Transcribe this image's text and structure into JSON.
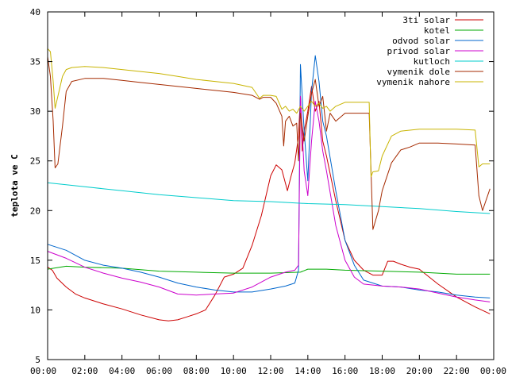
{
  "chart_data": {
    "type": "line",
    "title": "",
    "xlabel": "",
    "ylabel": "teplota ve C",
    "x_unit": "hours",
    "xlim": [
      0,
      24
    ],
    "ylim": [
      5,
      40
    ],
    "x_tick_labels": [
      "00:00",
      "02:00",
      "04:00",
      "06:00",
      "08:00",
      "10:00",
      "12:00",
      "14:00",
      "16:00",
      "18:00",
      "20:00",
      "22:00",
      "00:00"
    ],
    "x_tick_values": [
      0,
      2,
      4,
      6,
      8,
      10,
      12,
      14,
      16,
      18,
      20,
      22,
      24
    ],
    "y_ticks": [
      5,
      10,
      15,
      20,
      25,
      30,
      35,
      40
    ],
    "grid": false,
    "legend_position": "top-right",
    "series": [
      {
        "name": "3ti solar",
        "color": "#cc0000",
        "x": [
          0,
          0.25,
          0.5,
          1,
          1.5,
          2,
          3,
          4,
          5,
          6,
          6.5,
          7,
          7.5,
          8,
          8.5,
          9,
          9.5,
          10,
          10.5,
          11,
          11.5,
          12,
          12.3,
          12.6,
          12.9,
          13.1,
          13.3,
          13.5,
          13.6,
          13.7,
          13.8,
          14.0,
          14.2,
          14.4,
          14.6,
          14.8,
          15.0,
          15.5,
          16,
          16.5,
          17,
          17.5,
          18,
          18.3,
          18.6,
          19,
          19.5,
          20,
          21,
          22,
          23,
          23.8
        ],
        "values": [
          14.3,
          14.0,
          13.2,
          12.3,
          11.6,
          11.2,
          10.6,
          10.1,
          9.5,
          9.0,
          8.9,
          9.0,
          9.3,
          9.6,
          10.0,
          11.5,
          13.3,
          13.6,
          14.2,
          16.5,
          19.5,
          23.5,
          24.6,
          24.1,
          22.0,
          23.5,
          24.8,
          27.5,
          31.5,
          26.0,
          28.0,
          30.0,
          32.5,
          30.0,
          31.0,
          27.0,
          25.5,
          21.0,
          17.0,
          15.0,
          14.0,
          13.5,
          13.5,
          14.9,
          14.9,
          14.6,
          14.3,
          14.1,
          12.6,
          11.3,
          10.3,
          9.6
        ]
      },
      {
        "name": "kotel",
        "color": "#00aa00",
        "x": [
          0,
          1,
          2,
          4,
          6,
          8,
          10,
          12,
          13.6,
          14,
          15,
          16,
          18,
          20,
          22,
          23.8
        ],
        "values": [
          14.1,
          14.4,
          14.3,
          14.2,
          13.9,
          13.8,
          13.7,
          13.7,
          13.8,
          14.1,
          14.1,
          14.0,
          13.9,
          13.8,
          13.6,
          13.6
        ]
      },
      {
        "name": "odvod solar",
        "color": "#0066cc",
        "x": [
          0,
          1,
          2,
          3,
          4,
          5,
          6,
          7,
          8,
          9,
          10,
          11,
          12,
          12.8,
          13.3,
          13.5,
          13.6,
          13.8,
          14.0,
          14.2,
          14.4,
          14.6,
          14.8,
          15,
          15.5,
          16,
          16.5,
          17,
          18,
          19,
          20,
          21,
          22,
          23,
          23.8
        ],
        "values": [
          16.6,
          16.0,
          15.0,
          14.5,
          14.2,
          13.8,
          13.3,
          12.7,
          12.3,
          12.0,
          11.8,
          11.8,
          12.1,
          12.4,
          12.7,
          14.0,
          34.7,
          28.0,
          23.0,
          32.0,
          35.6,
          33.0,
          29.0,
          27.5,
          22.0,
          17.0,
          14.5,
          13.0,
          12.4,
          12.3,
          12.0,
          11.8,
          11.5,
          11.3,
          11.2
        ]
      },
      {
        "name": "privod solar",
        "color": "#cc00cc",
        "x": [
          0,
          1,
          2,
          3,
          4,
          5,
          6,
          7,
          8,
          9,
          10,
          11,
          12,
          12.8,
          13.3,
          13.5,
          13.6,
          13.8,
          14.0,
          14.2,
          14.4,
          14.6,
          14.8,
          15,
          15.5,
          16,
          16.5,
          17,
          18,
          19,
          20,
          21,
          22,
          23,
          23.8
        ],
        "values": [
          15.9,
          15.2,
          14.3,
          13.7,
          13.2,
          12.8,
          12.3,
          11.6,
          11.5,
          11.6,
          11.7,
          12.3,
          13.3,
          13.8,
          14.0,
          14.5,
          31.5,
          24.0,
          21.5,
          27.0,
          31.0,
          29.0,
          26.0,
          24.0,
          18.5,
          15.0,
          13.3,
          12.6,
          12.4,
          12.3,
          12.1,
          11.7,
          11.3,
          11.0,
          10.8
        ]
      },
      {
        "name": "kutloch",
        "color": "#00cccc",
        "x": [
          0,
          1,
          2,
          4,
          6,
          8,
          10,
          12,
          14,
          16,
          18,
          20,
          22,
          23.8
        ],
        "values": [
          22.8,
          22.6,
          22.4,
          22.0,
          21.6,
          21.3,
          21.0,
          20.9,
          20.7,
          20.6,
          20.4,
          20.2,
          19.9,
          19.7
        ]
      },
      {
        "name": "vymenik dole",
        "color": "#a52a00",
        "x": [
          0,
          0.15,
          0.3,
          0.4,
          0.55,
          0.8,
          1.0,
          1.3,
          2,
          3,
          4,
          5,
          6,
          7,
          8,
          9,
          10,
          11,
          11.4,
          11.6,
          12,
          12.3,
          12.6,
          12.7,
          12.8,
          13,
          13.2,
          13.4,
          13.5,
          13.6,
          13.8,
          14.0,
          14.2,
          14.4,
          14.6,
          14.8,
          15.0,
          15.2,
          15.5,
          16,
          17,
          17.3,
          17.5,
          17.8,
          18,
          18.5,
          19,
          19.5,
          20,
          21,
          22,
          23,
          23.2,
          23.4,
          23.8
        ],
        "values": [
          35.5,
          33.5,
          29.0,
          24.3,
          24.7,
          28.5,
          32.0,
          33.0,
          33.3,
          33.3,
          33.1,
          32.9,
          32.7,
          32.5,
          32.3,
          32.1,
          31.9,
          31.6,
          31.2,
          31.4,
          31.4,
          30.8,
          29.5,
          26.5,
          29.0,
          29.5,
          28.5,
          28.8,
          25.0,
          29.8,
          27.0,
          29.5,
          31.8,
          33.2,
          30.5,
          31.5,
          28.0,
          29.8,
          29.0,
          29.8,
          29.8,
          29.8,
          18.1,
          20.0,
          22.0,
          24.8,
          26.1,
          26.4,
          26.8,
          26.8,
          26.7,
          26.6,
          21.5,
          20.0,
          22.2
        ]
      },
      {
        "name": "vymenik nahore",
        "color": "#c8b400",
        "x": [
          0,
          0.15,
          0.3,
          0.4,
          0.55,
          0.8,
          1.0,
          1.3,
          2,
          3,
          4,
          5,
          6,
          7,
          8,
          9,
          10,
          11,
          11.4,
          11.6,
          12,
          12.3,
          12.6,
          12.8,
          13,
          13.2,
          13.4,
          13.6,
          13.8,
          14.0,
          14.2,
          14.4,
          14.6,
          14.8,
          15.0,
          15.2,
          15.5,
          16,
          17,
          17.3,
          17.4,
          17.5,
          17.8,
          18,
          18.5,
          19,
          20,
          21,
          22,
          23,
          23.2,
          23.4,
          23.8
        ],
        "values": [
          36.3,
          36.0,
          33.0,
          30.3,
          31.5,
          33.5,
          34.2,
          34.4,
          34.5,
          34.4,
          34.2,
          34.0,
          33.8,
          33.5,
          33.2,
          33.0,
          32.8,
          32.4,
          31.3,
          31.6,
          31.6,
          31.5,
          30.2,
          30.5,
          30.0,
          30.2,
          29.8,
          30.5,
          30.0,
          30.5,
          31.0,
          30.5,
          30.8,
          30.3,
          30.5,
          30.0,
          30.5,
          30.9,
          30.9,
          30.9,
          23.4,
          23.9,
          24.0,
          25.5,
          27.5,
          28.0,
          28.2,
          28.2,
          28.2,
          28.1,
          24.4,
          24.7,
          24.7
        ]
      }
    ]
  }
}
